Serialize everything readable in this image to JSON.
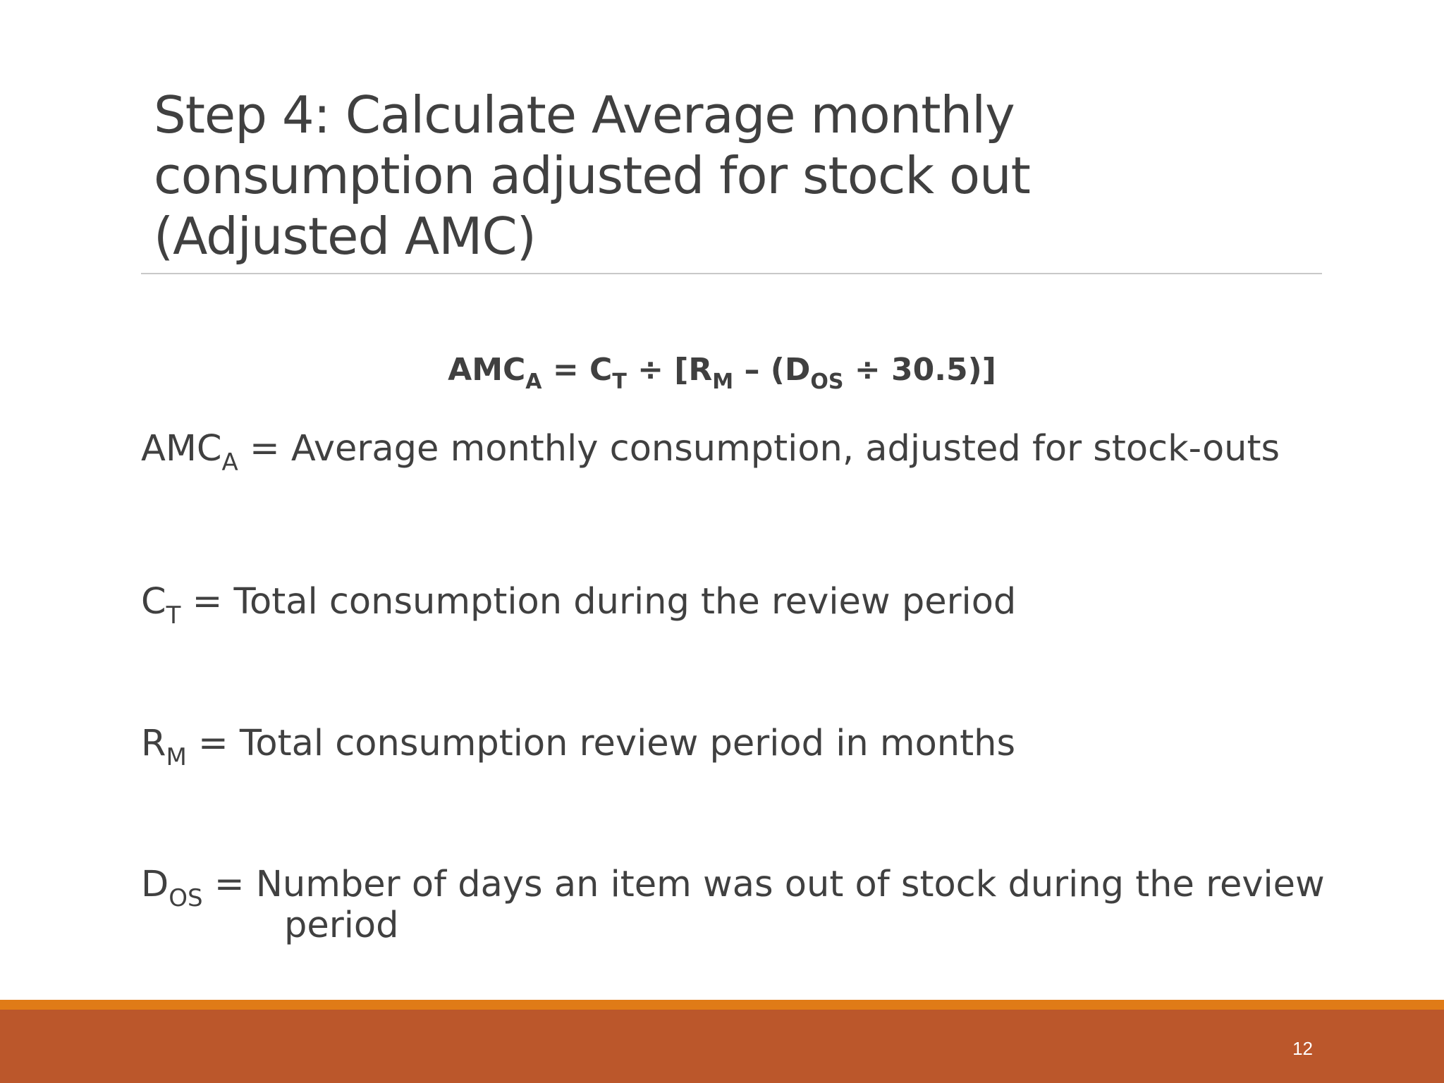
{
  "title": {
    "line1": "Step 4: Calculate Average monthly",
    "line2": "consumption adjusted for stock out",
    "line3": "(Adjusted AMC)"
  },
  "formula": {
    "amc": "AMC",
    "amc_sub": "A",
    "eq": " = C",
    "ct_sub": "T",
    "div1": " ÷ [R",
    "rm_sub": "M",
    "minus": " – (D",
    "dos_sub": "OS",
    "rest": " ÷ 30.5)]"
  },
  "definitions": {
    "amca": {
      "symbol": "AMC",
      "sub": "A",
      "text": " = Average monthly consumption, adjusted for stock-outs"
    },
    "ct": {
      "symbol": "C",
      "sub": "T",
      "text": " = Total consumption during the review period"
    },
    "rm": {
      "symbol": "R",
      "sub": "M",
      "text": " = Total consumption review period in months"
    },
    "dos": {
      "symbol": "D",
      "sub": "OS",
      "text": " = Number of days an item was out of stock during the review",
      "continuation": "period"
    }
  },
  "footer": {
    "page_number": "12",
    "colors": {
      "accent_orange": "#e07b17",
      "footer_rust": "#bb572b"
    }
  }
}
